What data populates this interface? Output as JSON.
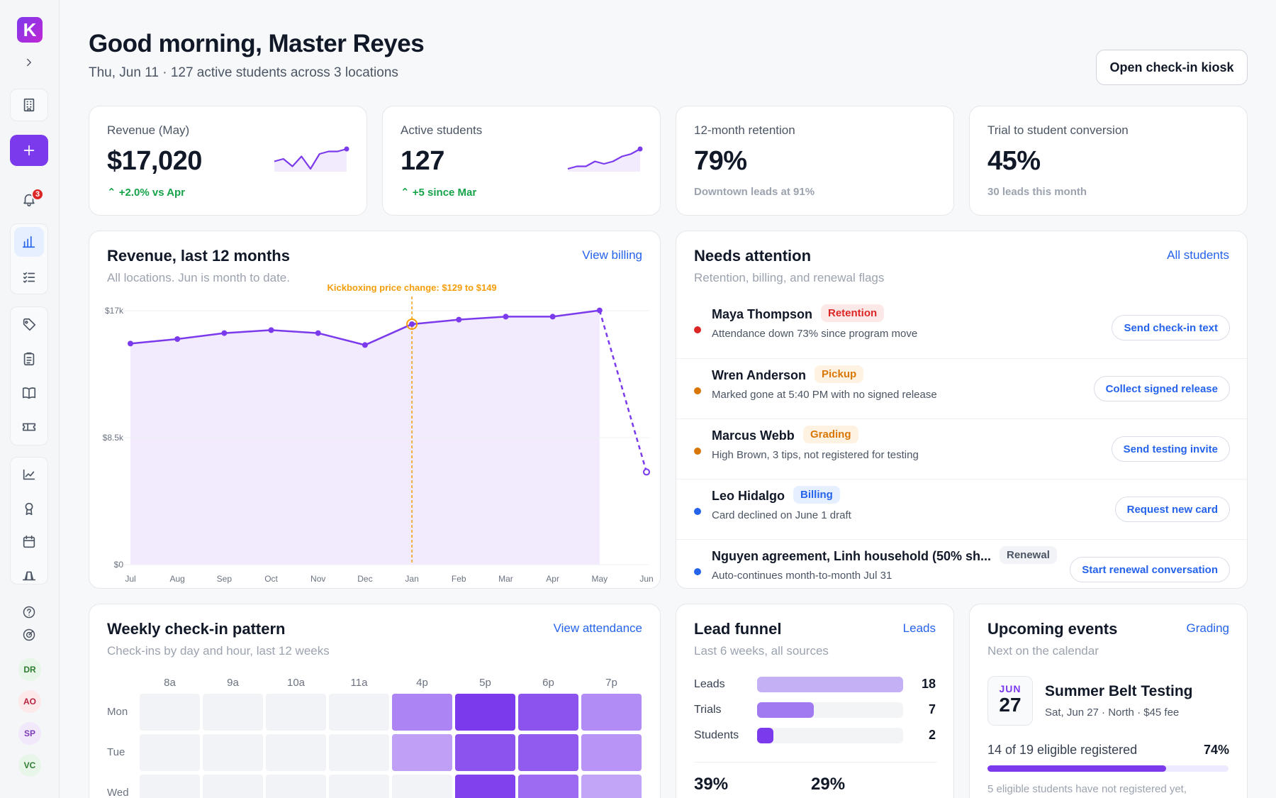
{
  "sidebar": {
    "logo_letter": "K",
    "notification_count": "3",
    "avatars": [
      {
        "initials": "DR",
        "bg": "#e8f5e9",
        "fg": "#2e7d32"
      },
      {
        "initials": "AO",
        "bg": "#fde8ea",
        "fg": "#b4233f"
      },
      {
        "initials": "SP",
        "bg": "#f1e8fb",
        "fg": "#7e3db8"
      },
      {
        "initials": "VC",
        "bg": "#e8f5e9",
        "fg": "#2e7d32"
      }
    ]
  },
  "header": {
    "greeting": "Good morning, Master Reyes",
    "subtitle": "Thu, Jun 11 · 127 active students across 3 locations",
    "kiosk_button": "Open check-in kiosk"
  },
  "kpis": [
    {
      "label": "Revenue (May)",
      "value": "$17,020",
      "delta": "+2.0% vs Apr",
      "positive": true,
      "spark": [
        5,
        6,
        3,
        7,
        2,
        8,
        9,
        9,
        10
      ]
    },
    {
      "label": "Active students",
      "value": "127",
      "delta": "+5 since Mar",
      "positive": true,
      "spark": [
        2,
        3,
        3,
        5,
        4,
        5,
        7,
        8,
        10
      ]
    },
    {
      "label": "12-month retention",
      "value": "79%",
      "delta": "Downtown leads at 91%",
      "positive": false
    },
    {
      "label": "Trial to student conversion",
      "value": "45%",
      "delta": "30 leads this month",
      "positive": false
    }
  ],
  "revenue_card": {
    "title": "Revenue, last 12 months",
    "link": "View billing",
    "subtitle": "All locations. Jun is month to date."
  },
  "chart_data": {
    "type": "area",
    "title": "Revenue, last 12 months",
    "categories": [
      "Jul",
      "Aug",
      "Sep",
      "Oct",
      "Nov",
      "Dec",
      "Jan",
      "Feb",
      "Mar",
      "Apr",
      "May",
      "Jun"
    ],
    "values": [
      14800,
      15100,
      15500,
      15700,
      15500,
      14700,
      16100,
      16400,
      16600,
      16600,
      17020,
      6200
    ],
    "partial_last_point": true,
    "y_ticks": [
      "$0",
      "$8.5k",
      "$17k"
    ],
    "ylim": [
      0,
      17000
    ],
    "annotation": {
      "text": "Kickboxing price change: $129 to $149",
      "at": "Jan"
    },
    "colors": {
      "line": "#7c3aed",
      "fill": "#f1ebfd",
      "annotation": "#f59e0b"
    }
  },
  "attention": {
    "title": "Needs attention",
    "link": "All students",
    "subtitle": "Retention, billing, and renewal flags",
    "items": [
      {
        "name": "Maya Thompson",
        "tag": "Retention",
        "tag_fg": "#dc2626",
        "tag_bg": "#fde8e8",
        "dot": "#dc2626",
        "desc": "Attendance down 73% since program move",
        "action": "Send check-in text"
      },
      {
        "name": "Wren Anderson",
        "tag": "Pickup",
        "tag_fg": "#d97706",
        "tag_bg": "#fef3e2",
        "dot": "#d97706",
        "desc": "Marked gone at 5:40 PM with no signed release",
        "action": "Collect signed release"
      },
      {
        "name": "Marcus Webb",
        "tag": "Grading",
        "tag_fg": "#d97706",
        "tag_bg": "#fef3e2",
        "dot": "#d97706",
        "desc": "High Brown, 3 tips, not registered for testing",
        "action": "Send testing invite"
      },
      {
        "name": "Leo Hidalgo",
        "tag": "Billing",
        "tag_fg": "#2563eb",
        "tag_bg": "#e6efff",
        "dot": "#2563eb",
        "desc": "Card declined on June 1 draft",
        "action": "Request new card"
      },
      {
        "name": "Nguyen agreement, Linh household (50% sh...",
        "tag": "Renewal",
        "tag_fg": "#4b5563",
        "tag_bg": "#f1f3f6",
        "dot": "#2563eb",
        "desc": "Auto-continues month-to-month Jul 31",
        "action": "Start renewal conversation"
      }
    ]
  },
  "checkins": {
    "title": "Weekly check-in pattern",
    "link": "View attendance",
    "subtitle": "Check-ins by day and hour, last 12 weeks",
    "hours": [
      "8a",
      "9a",
      "10a",
      "11a",
      "4p",
      "5p",
      "6p",
      "7p"
    ],
    "days": [
      "Mon",
      "Tue",
      "Wed"
    ],
    "intensity": [
      [
        0,
        0,
        0,
        0,
        0.55,
        1.0,
        0.85,
        0.5
      ],
      [
        0,
        0,
        0,
        0,
        0.38,
        0.85,
        0.8,
        0.45
      ],
      [
        0,
        0,
        0,
        0,
        0,
        0.95,
        0.7,
        0.35
      ]
    ]
  },
  "funnel": {
    "title": "Lead funnel",
    "link": "Leads",
    "subtitle": "Last 6 weeks, all sources",
    "rows": [
      {
        "label": "Leads",
        "count": "18",
        "value": 18,
        "color": "#c4b0f5"
      },
      {
        "label": "Trials",
        "count": "7",
        "value": 7,
        "color": "#a179f0"
      },
      {
        "label": "Students",
        "count": "2",
        "value": 2,
        "color": "#7c3aed"
      }
    ],
    "max": 18,
    "stat1": "39%",
    "stat2": "29%"
  },
  "events": {
    "title": "Upcoming events",
    "link": "Grading",
    "subtitle": "Next on the calendar",
    "month": "JUN",
    "day": "27",
    "name": "Summer Belt Testing",
    "meta": "Sat, Jun 27 · North · $45 fee",
    "registered": "14 of 19 eligible registered",
    "pct_label": "74%",
    "pct": 0.74,
    "note": "5 eligible students have not registered yet,"
  }
}
